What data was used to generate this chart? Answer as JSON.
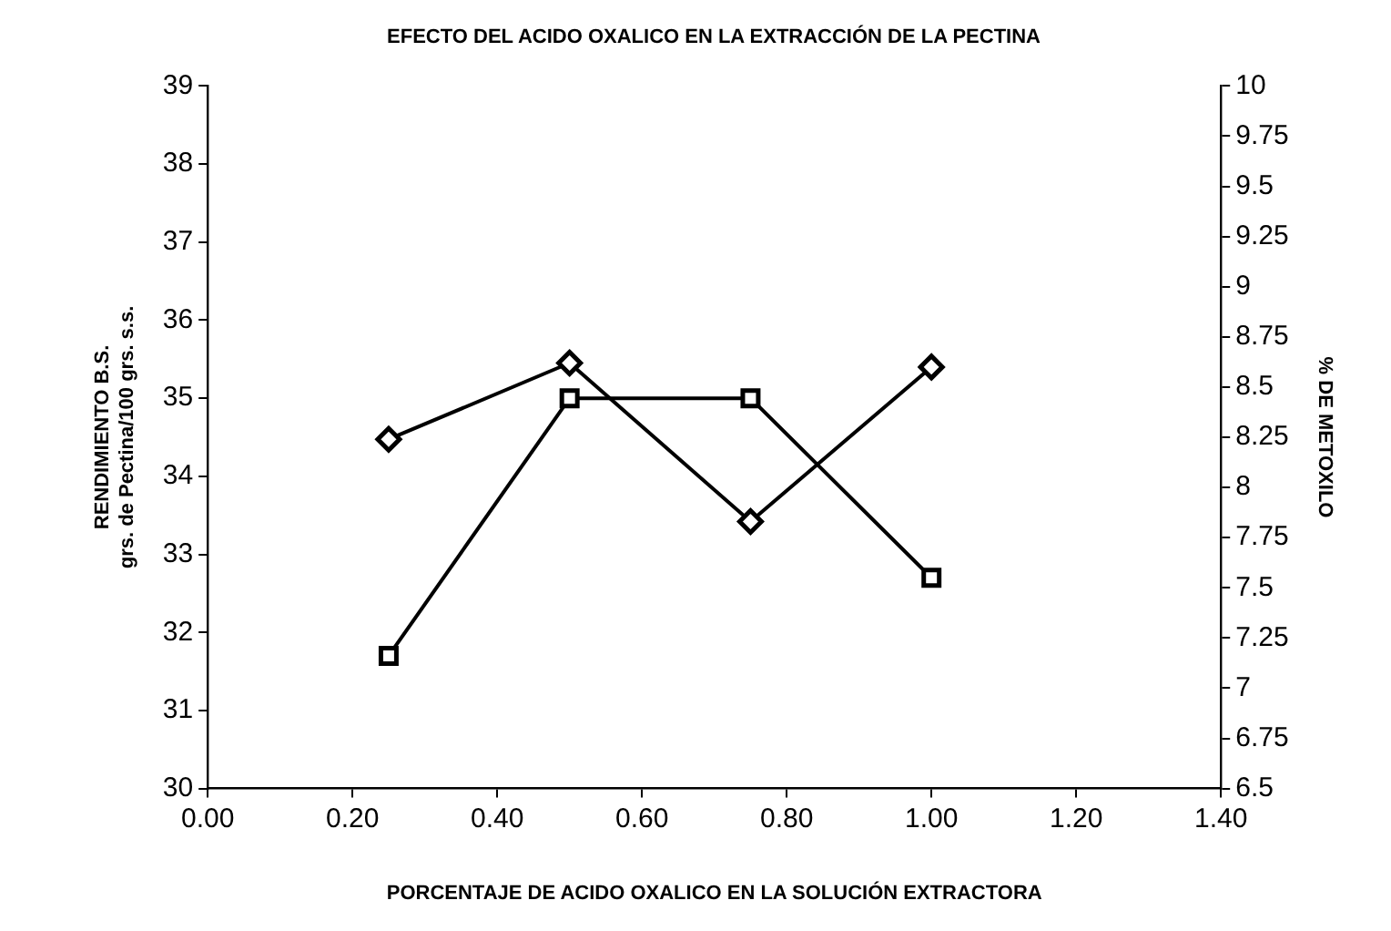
{
  "chart_data": {
    "type": "line",
    "title": "EFECTO DEL ACIDO OXALICO EN LA EXTRACCIÓN DE LA PECTINA",
    "xlabel": "PORCENTAJE DE ACIDO OXALICO EN LA SOLUCIÓN EXTRACTORA",
    "ylabel": "RENDIMIENTO B.S.\ngrs. de Pectina/100 grs. s.s.",
    "y2label": "% DE METOXILO",
    "x": [
      0.25,
      0.5,
      0.75,
      1.0
    ],
    "series": [
      {
        "color": "#000000",
        "marker": "square",
        "values": [
          31.7,
          35.0,
          35.0,
          32.7
        ]
      },
      {
        "color": "#000000",
        "marker": "diamond",
        "axis": "y2",
        "values": [
          8.24,
          8.62,
          7.83,
          8.6
        ]
      }
    ],
    "xlim": [
      0,
      1.4
    ],
    "xticks": [
      {
        "value": 0,
        "label": "0.00"
      },
      {
        "value": 0.2,
        "label": "0.20"
      },
      {
        "value": 0.4,
        "label": "0.40"
      },
      {
        "value": 0.6,
        "label": "0.60"
      },
      {
        "value": 0.8,
        "label": "0.80"
      },
      {
        "value": 1,
        "label": "1.00"
      },
      {
        "value": 1.2,
        "label": "1.20"
      },
      {
        "value": 1.4,
        "label": "1.40"
      }
    ],
    "ylim": [
      30,
      39
    ],
    "yticks": [
      30,
      31,
      32,
      33,
      34,
      35,
      36,
      37,
      38,
      39
    ],
    "y2lim": [
      6.5,
      10
    ],
    "y2ticks": [
      6.5,
      6.75,
      7,
      7.25,
      7.5,
      7.75,
      8,
      8.25,
      8.5,
      8.75,
      9,
      9.25,
      9.5,
      9.75,
      10
    ],
    "grid": false,
    "legend": false,
    "line_style": "solid"
  }
}
